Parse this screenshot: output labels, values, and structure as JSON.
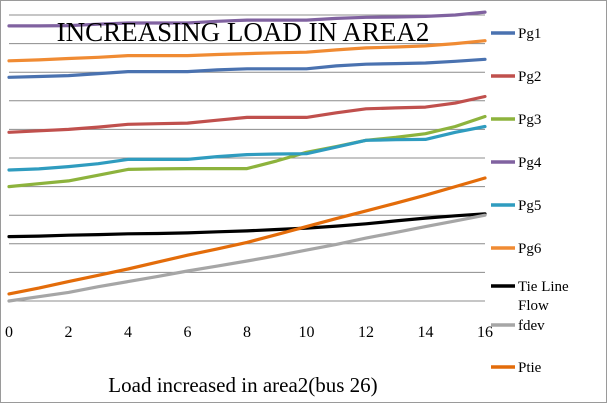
{
  "chart_data": {
    "type": "line",
    "title": "INCREASING LOAD IN AREA2",
    "xlabel": "Load increased in area2(bus 26)",
    "ylabel": "",
    "x": [
      0,
      1,
      2,
      3,
      4,
      5,
      6,
      7,
      8,
      9,
      10,
      11,
      12,
      13,
      14,
      15,
      16
    ],
    "x_ticks": [
      "0",
      "2",
      "4",
      "6",
      "8",
      "10",
      "12",
      "14",
      "16"
    ],
    "xlim": [
      0,
      16
    ],
    "y_ticks_shown": false,
    "ylim": [
      0,
      10
    ],
    "grid": "horizontal",
    "legend_position": "right",
    "series": [
      {
        "name": "Pg1",
        "color": "#4a72b0",
        "values": [
          7.82,
          7.85,
          7.88,
          7.95,
          8.02,
          8.02,
          8.02,
          8.08,
          8.12,
          8.12,
          8.12,
          8.22,
          8.28,
          8.3,
          8.32,
          8.38,
          8.45
        ]
      },
      {
        "name": "Pg2",
        "color": "#c0504d",
        "values": [
          5.9,
          5.95,
          6.0,
          6.08,
          6.18,
          6.2,
          6.22,
          6.32,
          6.42,
          6.42,
          6.42,
          6.58,
          6.72,
          6.75,
          6.78,
          6.92,
          7.15
        ]
      },
      {
        "name": "Pg3",
        "color": "#8db33d",
        "values": [
          4.0,
          4.1,
          4.2,
          4.4,
          4.6,
          4.62,
          4.63,
          4.63,
          4.63,
          4.9,
          5.2,
          5.4,
          5.62,
          5.72,
          5.85,
          6.1,
          6.45
        ]
      },
      {
        "name": "Pg4",
        "color": "#8062a0",
        "values": [
          9.62,
          9.62,
          9.63,
          9.68,
          9.72,
          9.72,
          9.72,
          9.78,
          9.82,
          9.82,
          9.82,
          9.88,
          9.92,
          9.93,
          9.95,
          10.0,
          10.1
        ]
      },
      {
        "name": "Pg5",
        "color": "#2f9cbf",
        "values": [
          4.58,
          4.62,
          4.7,
          4.8,
          4.95,
          4.95,
          4.95,
          5.05,
          5.12,
          5.14,
          5.15,
          5.38,
          5.62,
          5.64,
          5.65,
          5.9,
          6.1
        ]
      },
      {
        "name": "Pg6",
        "color": "#f08b33",
        "values": [
          8.4,
          8.43,
          8.48,
          8.52,
          8.58,
          8.58,
          8.58,
          8.62,
          8.65,
          8.68,
          8.7,
          8.78,
          8.85,
          8.88,
          8.92,
          9.0,
          9.1
        ]
      },
      {
        "name": "Tie Line Flow",
        "color": "#000000",
        "values": [
          2.25,
          2.27,
          2.3,
          2.32,
          2.35,
          2.36,
          2.38,
          2.42,
          2.45,
          2.5,
          2.55,
          2.62,
          2.7,
          2.8,
          2.9,
          2.98,
          3.05
        ]
      },
      {
        "name": "fdev",
        "color": "#a6a6a6",
        "values": [
          0.0,
          0.15,
          0.3,
          0.5,
          0.68,
          0.86,
          1.05,
          1.22,
          1.4,
          1.58,
          1.78,
          1.98,
          2.2,
          2.4,
          2.6,
          2.8,
          3.0
        ]
      },
      {
        "name": "Ptie",
        "color": "#e36c0a",
        "values": [
          0.25,
          0.45,
          0.68,
          0.9,
          1.12,
          1.36,
          1.6,
          1.82,
          2.05,
          2.32,
          2.6,
          2.88,
          3.15,
          3.42,
          3.7,
          4.0,
          4.3
        ]
      }
    ]
  }
}
